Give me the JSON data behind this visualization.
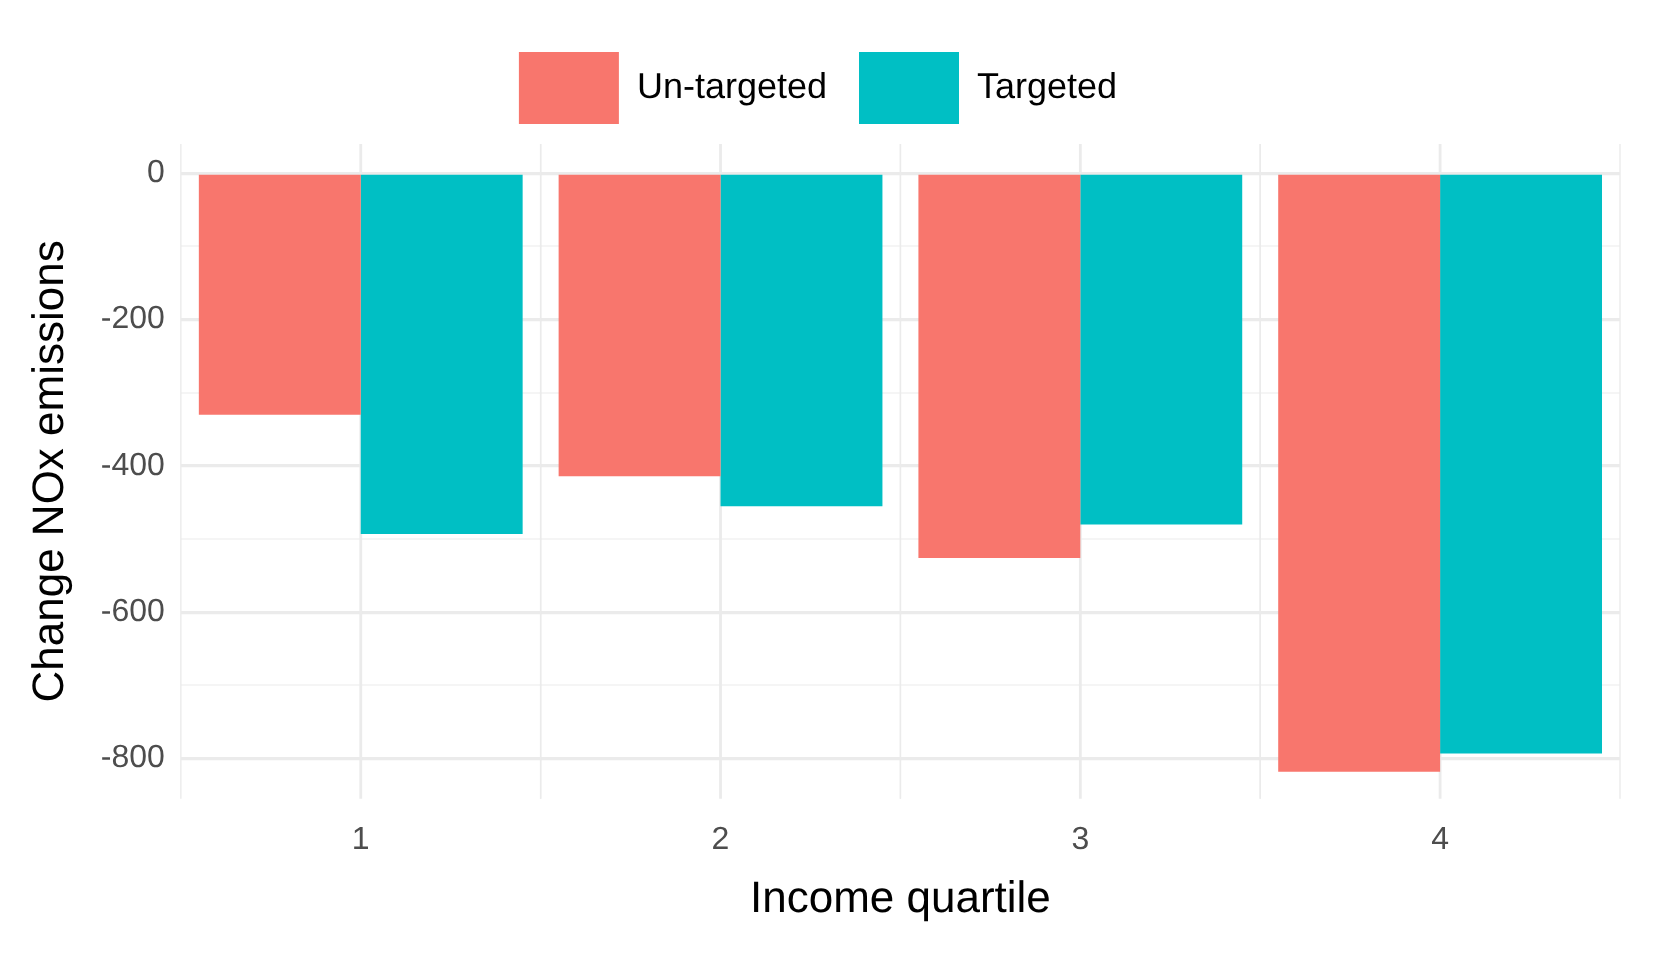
{
  "chart_data": {
    "type": "bar",
    "xlabel": "Income quartile",
    "ylabel": "Change NOx emissions",
    "categories": [
      "1",
      "2",
      "3",
      "4"
    ],
    "series": [
      {
        "name": "Un-targeted",
        "color": "#f8766d",
        "values": [
          -330,
          -414,
          -526,
          -818
        ]
      },
      {
        "name": "Targeted",
        "color": "#00bfc4",
        "values": [
          -493,
          -455,
          -480,
          -793
        ]
      }
    ],
    "ylim": [
      -855,
      40
    ],
    "yticks": [
      -800,
      {
        "value": -700,
        "label": null
      },
      -600,
      {
        "value": -500,
        "label": null
      },
      -400,
      {
        "value": -300,
        "label": null
      },
      -200,
      {
        "value": -100,
        "label": null
      },
      0
    ],
    "grid": true,
    "legend": "top"
  }
}
